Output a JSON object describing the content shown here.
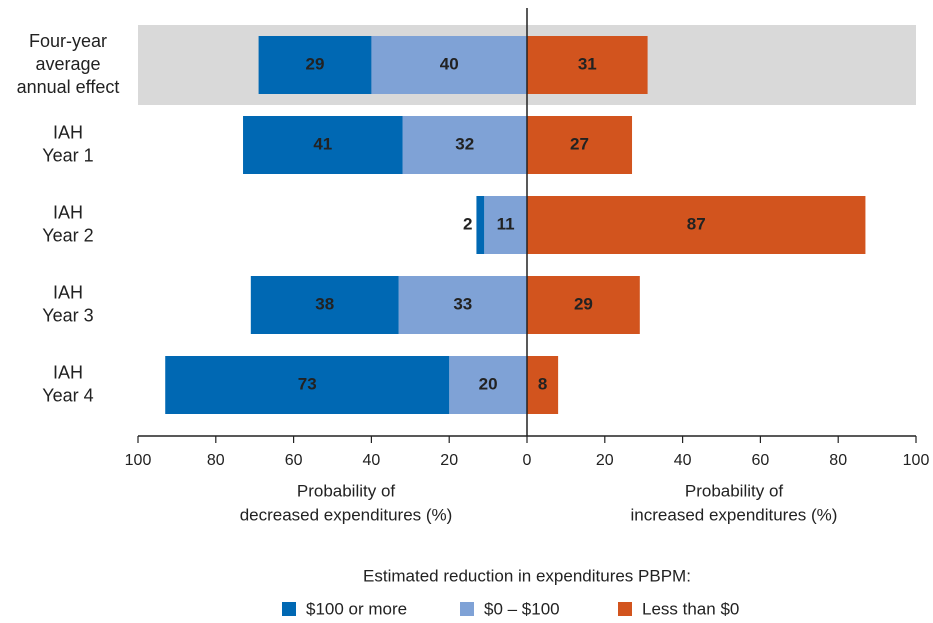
{
  "chart_data": {
    "type": "diverging_stacked_bar",
    "categories": [
      [
        "Four-year",
        "average",
        "annual effect"
      ],
      [
        "IAH",
        "Year 1"
      ],
      [
        "IAH",
        "Year 2"
      ],
      [
        "IAH",
        "Year 3"
      ],
      [
        "IAH",
        "Year 4"
      ]
    ],
    "highlight": [
      0
    ],
    "series": [
      {
        "name": "$100 or more",
        "color": "#0068b3",
        "direction": "left",
        "values": [
          29,
          41,
          2,
          38,
          73
        ]
      },
      {
        "name": "$0 – $100",
        "color": "#7fa2d6",
        "direction": "left",
        "values": [
          40,
          32,
          11,
          33,
          20
        ]
      },
      {
        "name": "Less than $0",
        "color": "#d2541e",
        "direction": "right",
        "values": [
          31,
          27,
          87,
          29,
          8
        ]
      }
    ],
    "xlim": [
      -100,
      100
    ],
    "xticks": [
      {
        "value": -100,
        "label": "100"
      },
      {
        "value": -80,
        "label": "80"
      },
      {
        "value": -60,
        "label": "60"
      },
      {
        "value": -40,
        "label": "40"
      },
      {
        "value": -20,
        "label": "20"
      },
      0,
      20,
      40,
      60,
      80,
      100
    ],
    "xlabel_left": [
      "Probability of",
      "decreased expenditures (%)"
    ],
    "xlabel_right": [
      "Probability of",
      "increased expenditures (%)"
    ],
    "legend_title": "Estimated reduction in expenditures PBPM:"
  }
}
